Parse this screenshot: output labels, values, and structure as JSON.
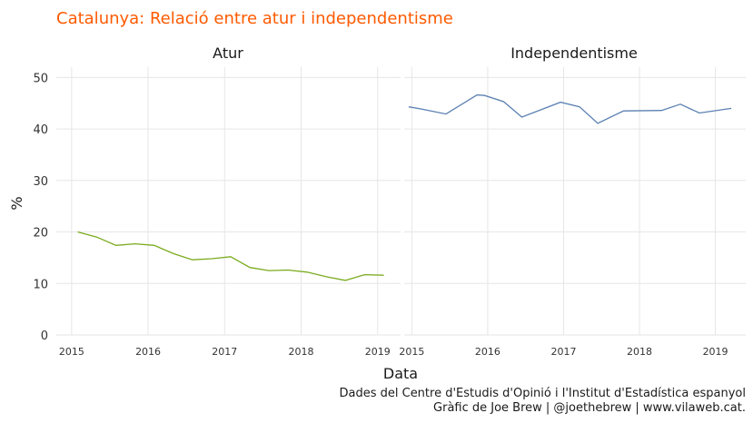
{
  "chart_data": {
    "type": "line",
    "title": "Catalunya: Relació entre atur i independentisme",
    "xlabel": "Data",
    "ylabel": "%",
    "ylim": [
      0,
      52
    ],
    "yticks": [
      0,
      10,
      20,
      30,
      40,
      50
    ],
    "grid": true,
    "legend": "none",
    "caption": [
      "Dades del Centre d'Estudis d'Opinió i l'Institut d'Estadística espanyol",
      "Gràfic de Joe Brew | @joethebrew | www.vilaweb.cat."
    ],
    "facets": [
      {
        "label": "Atur",
        "color": "#7aab1f",
        "xlim": [
          2014.8,
          2019.3
        ],
        "xticks": [
          "2015",
          "2016",
          "2017",
          "2018",
          "2019"
        ],
        "x": [
          2015.08,
          2015.33,
          2015.58,
          2015.83,
          2016.08,
          2016.33,
          2016.58,
          2016.83,
          2017.08,
          2017.33,
          2017.58,
          2017.83,
          2018.08,
          2018.33,
          2018.58,
          2018.83,
          2019.08
        ],
        "values": [
          20.0,
          19.0,
          17.4,
          17.7,
          17.4,
          15.8,
          14.6,
          14.8,
          15.2,
          13.1,
          12.5,
          12.6,
          12.2,
          11.3,
          10.6,
          11.7,
          11.6
        ]
      },
      {
        "label": "Independentisme",
        "color": "#5b80b2",
        "xlim": [
          2014.9,
          2019.4
        ],
        "xticks": [
          "2015",
          "2016",
          "2017",
          "2018",
          "2019"
        ],
        "x": [
          2014.96,
          2015.12,
          2015.45,
          2015.86,
          2015.96,
          2016.21,
          2016.45,
          2016.96,
          2017.21,
          2017.45,
          2017.79,
          2018.29,
          2018.54,
          2018.79,
          2019.21
        ],
        "values": [
          44.3,
          43.9,
          42.9,
          46.6,
          46.5,
          45.3,
          42.3,
          45.2,
          44.3,
          41.1,
          43.5,
          43.6,
          44.8,
          43.1,
          44.0
        ]
      }
    ]
  }
}
